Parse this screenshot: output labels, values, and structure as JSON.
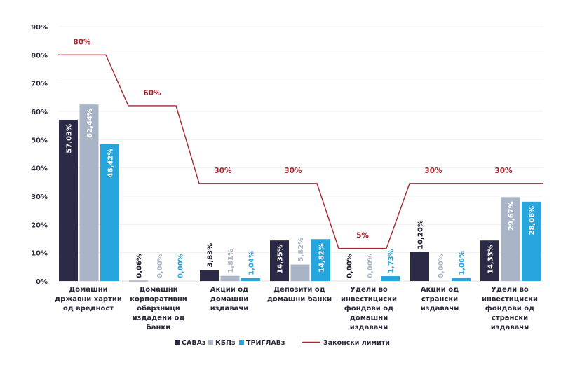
{
  "chart_data": {
    "type": "bar",
    "ylim": [
      0,
      90
    ],
    "yticks": [
      "0%",
      "10%",
      "20%",
      "30%",
      "40%",
      "50%",
      "60%",
      "70%",
      "80%",
      "90%"
    ],
    "categories": [
      [
        "Домашни",
        "државни хартии",
        "од вредност"
      ],
      [
        "Домашни",
        "корпоративни",
        "обврзници",
        "издадени од",
        "банки"
      ],
      [
        "Акции од",
        "домашни",
        "издавачи"
      ],
      [
        "Депозити од",
        "домашни банки"
      ],
      [
        "Удели во",
        "инвестициски",
        "фондови од",
        "домашни",
        "издавачи"
      ],
      [
        "Акции од",
        "странски",
        "издавачи"
      ],
      [
        "Удели во",
        "инвестициски",
        "фондови од",
        "странски",
        "издавачи"
      ]
    ],
    "series": [
      {
        "name": "САВАз",
        "color": "#2b2a47",
        "label_color": "#1e1e2e",
        "values": [
          57.03,
          0.06,
          3.83,
          14.35,
          0.0,
          10.2,
          14.33
        ],
        "labels": [
          "57,03%",
          "0,06%",
          "3,83%",
          "14,35%",
          "0,00%",
          "10,20%",
          "14,33%"
        ]
      },
      {
        "name": "КБПз",
        "color": "#a9b4c6",
        "label_color": "#a9b4c6",
        "values": [
          62.44,
          0.0,
          1.81,
          5.82,
          0.0,
          0.0,
          29.67
        ],
        "labels": [
          "62,44%",
          "0,00%",
          "1,81%",
          "5,82%",
          "0,00%",
          "0,00%",
          "29,67%"
        ]
      },
      {
        "name": "ТРИГЛАВз",
        "color": "#27a6dd",
        "label_color": "#27a6dd",
        "values": [
          48.42,
          0.0,
          1.04,
          14.82,
          1.73,
          1.06,
          28.06
        ],
        "labels": [
          "48,42%",
          "0,00%",
          "1,04%",
          "14,82%",
          "1,73%",
          "1,06%",
          "28,06%"
        ]
      }
    ],
    "limit_series": {
      "name": "Законски лимити",
      "color": "#a5282f",
      "labels": [
        "80%",
        "60%",
        "30%",
        "30%",
        "5%",
        "30%",
        "30%"
      ],
      "plotted_values": [
        80,
        62,
        34.5,
        34.5,
        11.5,
        34.5,
        34.5
      ]
    }
  }
}
